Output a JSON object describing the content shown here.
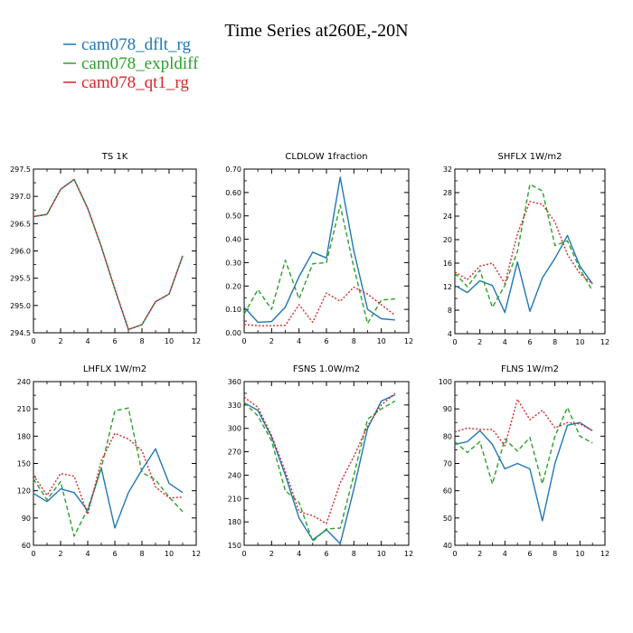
{
  "figure": {
    "title": "Time Series at260E,-20N"
  },
  "legend": [
    {
      "label": "cam078_dflt_rg",
      "color": "#1f77b4"
    },
    {
      "label": "cam078_expldiff",
      "color": "#2ca02c"
    },
    {
      "label": "cam078_qt1_rg",
      "color": "#d62728"
    }
  ],
  "chart_data": [
    {
      "type": "line",
      "title": "TS   1K",
      "xlim": [
        0,
        12
      ],
      "xticks": [
        0,
        2,
        4,
        6,
        8,
        10,
        12
      ],
      "ylim": [
        294.5,
        297.5
      ],
      "yticks": [
        "294.5",
        "295.0",
        "295.5",
        "296.0",
        "296.5",
        "297.0",
        "297.5"
      ],
      "x": [
        0,
        1,
        2,
        3,
        4,
        5,
        6,
        7,
        8,
        9,
        10,
        11
      ],
      "series": [
        {
          "name": "cam078_dflt_rg",
          "values": [
            296.63,
            296.67,
            297.13,
            297.31,
            296.78,
            296.08,
            295.3,
            294.56,
            294.65,
            295.07,
            295.21,
            295.91
          ]
        },
        {
          "name": "cam078_expldiff",
          "values": [
            296.63,
            296.67,
            297.13,
            297.31,
            296.78,
            296.08,
            295.3,
            294.56,
            294.65,
            295.07,
            295.21,
            295.91
          ]
        },
        {
          "name": "cam078_qt1_rg",
          "values": [
            296.63,
            296.67,
            297.13,
            297.31,
            296.78,
            296.08,
            295.3,
            294.56,
            294.65,
            295.07,
            295.21,
            295.91
          ]
        }
      ]
    },
    {
      "type": "line",
      "title": "CLDLOW   1fraction",
      "xlim": [
        0,
        12
      ],
      "xticks": [
        0,
        2,
        4,
        6,
        8,
        10,
        12
      ],
      "ylim": [
        0,
        0.7
      ],
      "yticks": [
        "0.00",
        "0.10",
        "0.20",
        "0.30",
        "0.40",
        "0.50",
        "0.60",
        "0.70"
      ],
      "x": [
        0,
        1,
        2,
        3,
        4,
        5,
        6,
        7,
        8,
        9,
        10,
        11
      ],
      "series": [
        {
          "name": "cam078_dflt_rg",
          "values": [
            0.11,
            0.045,
            0.048,
            0.11,
            0.24,
            0.345,
            0.32,
            0.665,
            0.35,
            0.1,
            0.06,
            0.055
          ]
        },
        {
          "name": "cam078_expldiff",
          "values": [
            0.08,
            0.185,
            0.1,
            0.31,
            0.145,
            0.295,
            0.3,
            0.545,
            0.28,
            0.04,
            0.14,
            0.145
          ]
        },
        {
          "name": "cam078_qt1_rg",
          "values": [
            0.035,
            0.03,
            0.03,
            0.032,
            0.12,
            0.045,
            0.17,
            0.135,
            0.195,
            0.165,
            0.12,
            0.075
          ]
        }
      ]
    },
    {
      "type": "line",
      "title": "SHFLX   1W/m2",
      "xlim": [
        0,
        12
      ],
      "xticks": [
        0,
        2,
        4,
        6,
        8,
        10,
        12
      ],
      "ylim": [
        4,
        32
      ],
      "yticks": [
        "4",
        "8",
        "12",
        "16",
        "20",
        "24",
        "28",
        "32"
      ],
      "x": [
        0,
        1,
        2,
        3,
        4,
        5,
        6,
        7,
        8,
        9,
        10,
        11
      ],
      "series": [
        {
          "name": "cam078_dflt_rg",
          "values": [
            12.2,
            11,
            13,
            12.2,
            7.6,
            16.2,
            7.8,
            13.5,
            16.8,
            20.7,
            15.5,
            12.5
          ]
        },
        {
          "name": "cam078_expldiff",
          "values": [
            14.3,
            12,
            14.8,
            8.5,
            12.2,
            18,
            29.4,
            28.3,
            19,
            19.8,
            15,
            11.3
          ]
        },
        {
          "name": "cam078_qt1_rg",
          "values": [
            14.5,
            13.2,
            15.5,
            16,
            12.5,
            21,
            26.5,
            26,
            23,
            17.5,
            14.2,
            12.5
          ]
        }
      ]
    },
    {
      "type": "line",
      "title": "LHFLX   1W/m2",
      "xlim": [
        0,
        12
      ],
      "xticks": [
        0,
        2,
        4,
        6,
        8,
        10,
        12
      ],
      "ylim": [
        60,
        240
      ],
      "yticks": [
        "60",
        "90",
        "120",
        "150",
        "180",
        "210",
        "240"
      ],
      "x": [
        0,
        1,
        2,
        3,
        4,
        5,
        6,
        7,
        8,
        9,
        10,
        11
      ],
      "series": [
        {
          "name": "cam078_dflt_rg",
          "values": [
            117,
            108,
            122,
            118,
            98,
            145,
            79,
            118,
            143,
            166,
            128,
            118
          ]
        },
        {
          "name": "cam078_expldiff",
          "values": [
            133,
            110,
            130,
            70,
            100,
            145,
            208,
            211,
            140,
            132,
            113,
            97
          ]
        },
        {
          "name": "cam078_qt1_rg",
          "values": [
            137,
            115,
            139,
            136,
            94,
            153,
            183,
            177,
            164,
            124,
            112,
            113
          ]
        }
      ]
    },
    {
      "type": "line",
      "title": "FSNS   1.0W/m2",
      "xlim": [
        0,
        12
      ],
      "xticks": [
        0,
        2,
        4,
        6,
        8,
        10,
        12
      ],
      "ylim": [
        150,
        360
      ],
      "yticks": [
        "150",
        "180",
        "210",
        "240",
        "270",
        "300",
        "330",
        "360"
      ],
      "x": [
        0,
        1,
        2,
        3,
        4,
        5,
        6,
        7,
        8,
        9,
        10,
        11
      ],
      "series": [
        {
          "name": "cam078_dflt_rg",
          "values": [
            333,
            323,
            289,
            240,
            185,
            157,
            170,
            152,
            222,
            300,
            335,
            343
          ]
        },
        {
          "name": "cam078_expldiff",
          "values": [
            333,
            316,
            284,
            220,
            205,
            155,
            171,
            172,
            240,
            312,
            325,
            335
          ]
        },
        {
          "name": "cam078_qt1_rg",
          "values": [
            340,
            327,
            291,
            245,
            193,
            188,
            178,
            230,
            264,
            303,
            330,
            345
          ]
        }
      ]
    },
    {
      "type": "line",
      "title": "FLNS   1W/m2",
      "xlim": [
        0,
        12
      ],
      "xticks": [
        0,
        2,
        4,
        6,
        8,
        10,
        12
      ],
      "ylim": [
        40,
        100
      ],
      "yticks": [
        "40",
        "50",
        "60",
        "70",
        "80",
        "90",
        "100"
      ],
      "x": [
        0,
        1,
        2,
        3,
        4,
        5,
        6,
        7,
        8,
        9,
        10,
        11
      ],
      "series": [
        {
          "name": "cam078_dflt_rg",
          "values": [
            77,
            78,
            82,
            77,
            68,
            70,
            68,
            49,
            70,
            84,
            85,
            82
          ]
        },
        {
          "name": "cam078_expldiff",
          "values": [
            78,
            74,
            78,
            62.5,
            79,
            74.5,
            79.5,
            62.5,
            80,
            90.5,
            80,
            77.5
          ]
        },
        {
          "name": "cam078_qt1_rg",
          "values": [
            81.5,
            83,
            82.5,
            82.5,
            76.5,
            93.5,
            86,
            89.5,
            83,
            85,
            84.5,
            82
          ]
        }
      ]
    }
  ]
}
